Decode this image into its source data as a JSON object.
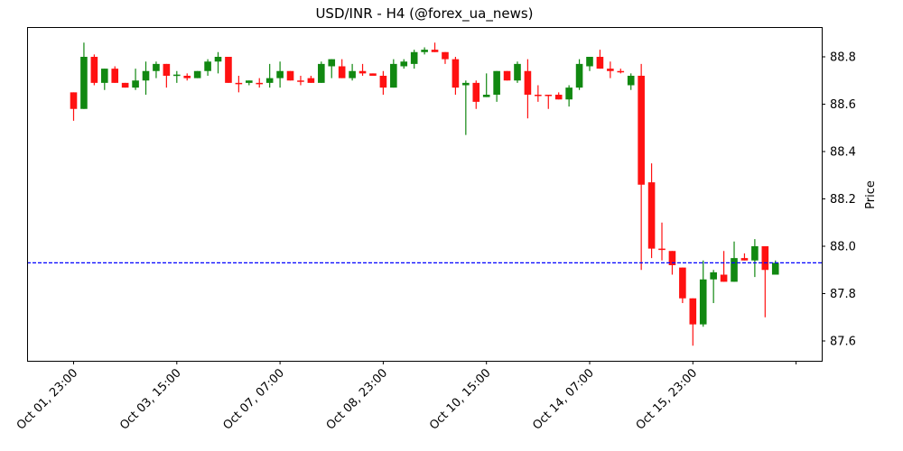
{
  "chart_data": {
    "type": "candlestick",
    "title": "USD/INR - H4 (@forex_ua_news)",
    "xlabel": "",
    "ylabel": "Price",
    "ylim": [
      87.515,
      88.925
    ],
    "yticks": [
      87.6,
      87.8,
      88.0,
      88.2,
      88.4,
      88.6,
      88.8
    ],
    "ytick_labels": [
      "87.6",
      "87.8",
      "88.0",
      "88.2",
      "88.4",
      "88.6",
      "88.8"
    ],
    "xtick_labels": [
      "Oct 01, 23:00",
      "Oct 03, 15:00",
      "Oct 07, 07:00",
      "Oct 08, 23:00",
      "Oct 10, 15:00",
      "Oct 14, 07:00",
      "Oct 15, 23:00",
      ""
    ],
    "xtick_indices": [
      0,
      10,
      20,
      30,
      40,
      50,
      60,
      70
    ],
    "grid": false,
    "up_color": "#118811",
    "down_color": "#ff1111",
    "reference_line": {
      "value": 87.93,
      "color": "#0000ff",
      "style": "dashed"
    },
    "candles": [
      {
        "o": 88.65,
        "h": 88.65,
        "l": 88.53,
        "c": 88.58
      },
      {
        "o": 88.58,
        "h": 88.86,
        "l": 88.58,
        "c": 88.8
      },
      {
        "o": 88.8,
        "h": 88.81,
        "l": 88.68,
        "c": 88.69
      },
      {
        "o": 88.69,
        "h": 88.75,
        "l": 88.66,
        "c": 88.75
      },
      {
        "o": 88.75,
        "h": 88.76,
        "l": 88.69,
        "c": 88.69
      },
      {
        "o": 88.69,
        "h": 88.69,
        "l": 88.67,
        "c": 88.67
      },
      {
        "o": 88.67,
        "h": 88.75,
        "l": 88.66,
        "c": 88.7
      },
      {
        "o": 88.7,
        "h": 88.78,
        "l": 88.64,
        "c": 88.74
      },
      {
        "o": 88.74,
        "h": 88.78,
        "l": 88.71,
        "c": 88.77
      },
      {
        "o": 88.77,
        "h": 88.77,
        "l": 88.67,
        "c": 88.72
      },
      {
        "o": 88.72,
        "h": 88.74,
        "l": 88.69,
        "c": 88.725
      },
      {
        "o": 88.72,
        "h": 88.73,
        "l": 88.7,
        "c": 88.71
      },
      {
        "o": 88.71,
        "h": 88.74,
        "l": 88.71,
        "c": 88.74
      },
      {
        "o": 88.74,
        "h": 88.79,
        "l": 88.72,
        "c": 88.78
      },
      {
        "o": 88.78,
        "h": 88.82,
        "l": 88.73,
        "c": 88.8
      },
      {
        "o": 88.8,
        "h": 88.8,
        "l": 88.69,
        "c": 88.69
      },
      {
        "o": 88.69,
        "h": 88.72,
        "l": 88.65,
        "c": 88.689
      },
      {
        "o": 88.69,
        "h": 88.7,
        "l": 88.68,
        "c": 88.7
      },
      {
        "o": 88.69,
        "h": 88.71,
        "l": 88.67,
        "c": 88.689
      },
      {
        "o": 88.69,
        "h": 88.77,
        "l": 88.67,
        "c": 88.71
      },
      {
        "o": 88.71,
        "h": 88.78,
        "l": 88.67,
        "c": 88.74
      },
      {
        "o": 88.74,
        "h": 88.74,
        "l": 88.7,
        "c": 88.7
      },
      {
        "o": 88.7,
        "h": 88.72,
        "l": 88.68,
        "c": 88.699
      },
      {
        "o": 88.71,
        "h": 88.72,
        "l": 88.69,
        "c": 88.69
      },
      {
        "o": 88.69,
        "h": 88.78,
        "l": 88.69,
        "c": 88.77
      },
      {
        "o": 88.76,
        "h": 88.79,
        "l": 88.71,
        "c": 88.79
      },
      {
        "o": 88.76,
        "h": 88.79,
        "l": 88.71,
        "c": 88.71
      },
      {
        "o": 88.71,
        "h": 88.77,
        "l": 88.7,
        "c": 88.74
      },
      {
        "o": 88.74,
        "h": 88.77,
        "l": 88.72,
        "c": 88.73
      },
      {
        "o": 88.73,
        "h": 88.73,
        "l": 88.72,
        "c": 88.72
      },
      {
        "o": 88.72,
        "h": 88.74,
        "l": 88.64,
        "c": 88.67
      },
      {
        "o": 88.67,
        "h": 88.79,
        "l": 88.67,
        "c": 88.77
      },
      {
        "o": 88.76,
        "h": 88.79,
        "l": 88.75,
        "c": 88.78
      },
      {
        "o": 88.77,
        "h": 88.83,
        "l": 88.75,
        "c": 88.82
      },
      {
        "o": 88.82,
        "h": 88.84,
        "l": 88.81,
        "c": 88.83
      },
      {
        "o": 88.83,
        "h": 88.86,
        "l": 88.82,
        "c": 88.82
      },
      {
        "o": 88.82,
        "h": 88.82,
        "l": 88.77,
        "c": 88.79
      },
      {
        "o": 88.79,
        "h": 88.8,
        "l": 88.64,
        "c": 88.67
      },
      {
        "o": 88.68,
        "h": 88.7,
        "l": 88.47,
        "c": 88.69
      },
      {
        "o": 88.69,
        "h": 88.7,
        "l": 88.58,
        "c": 88.61
      },
      {
        "o": 88.63,
        "h": 88.73,
        "l": 88.63,
        "c": 88.64
      },
      {
        "o": 88.64,
        "h": 88.74,
        "l": 88.61,
        "c": 88.74
      },
      {
        "o": 88.74,
        "h": 88.74,
        "l": 88.7,
        "c": 88.7
      },
      {
        "o": 88.7,
        "h": 88.78,
        "l": 88.69,
        "c": 88.77
      },
      {
        "o": 88.74,
        "h": 88.79,
        "l": 88.54,
        "c": 88.64
      },
      {
        "o": 88.64,
        "h": 88.68,
        "l": 88.61,
        "c": 88.639
      },
      {
        "o": 88.64,
        "h": 88.64,
        "l": 88.58,
        "c": 88.639
      },
      {
        "o": 88.64,
        "h": 88.65,
        "l": 88.62,
        "c": 88.62
      },
      {
        "o": 88.62,
        "h": 88.68,
        "l": 88.59,
        "c": 88.67
      },
      {
        "o": 88.67,
        "h": 88.79,
        "l": 88.66,
        "c": 88.77
      },
      {
        "o": 88.76,
        "h": 88.8,
        "l": 88.74,
        "c": 88.8
      },
      {
        "o": 88.8,
        "h": 88.83,
        "l": 88.75,
        "c": 88.75
      },
      {
        "o": 88.75,
        "h": 88.78,
        "l": 88.71,
        "c": 88.74
      },
      {
        "o": 88.74,
        "h": 88.75,
        "l": 88.73,
        "c": 88.735
      },
      {
        "o": 88.68,
        "h": 88.73,
        "l": 88.66,
        "c": 88.72
      },
      {
        "o": 88.72,
        "h": 88.77,
        "l": 87.9,
        "c": 88.26
      },
      {
        "o": 88.27,
        "h": 88.35,
        "l": 87.95,
        "c": 87.99
      },
      {
        "o": 87.99,
        "h": 88.1,
        "l": 87.94,
        "c": 87.985
      },
      {
        "o": 87.98,
        "h": 87.98,
        "l": 87.88,
        "c": 87.92
      },
      {
        "o": 87.91,
        "h": 87.91,
        "l": 87.76,
        "c": 87.78
      },
      {
        "o": 87.78,
        "h": 87.78,
        "l": 87.58,
        "c": 87.67
      },
      {
        "o": 87.67,
        "h": 87.94,
        "l": 87.66,
        "c": 87.86
      },
      {
        "o": 87.86,
        "h": 87.9,
        "l": 87.76,
        "c": 87.89
      },
      {
        "o": 87.88,
        "h": 87.98,
        "l": 87.85,
        "c": 87.85
      },
      {
        "o": 87.85,
        "h": 88.02,
        "l": 87.85,
        "c": 87.95
      },
      {
        "o": 87.95,
        "h": 87.97,
        "l": 87.94,
        "c": 87.94
      },
      {
        "o": 87.94,
        "h": 88.03,
        "l": 87.87,
        "c": 88.0
      },
      {
        "o": 88.0,
        "h": 88.0,
        "l": 87.7,
        "c": 87.9
      },
      {
        "o": 87.88,
        "h": 87.94,
        "l": 87.88,
        "c": 87.93
      }
    ]
  }
}
